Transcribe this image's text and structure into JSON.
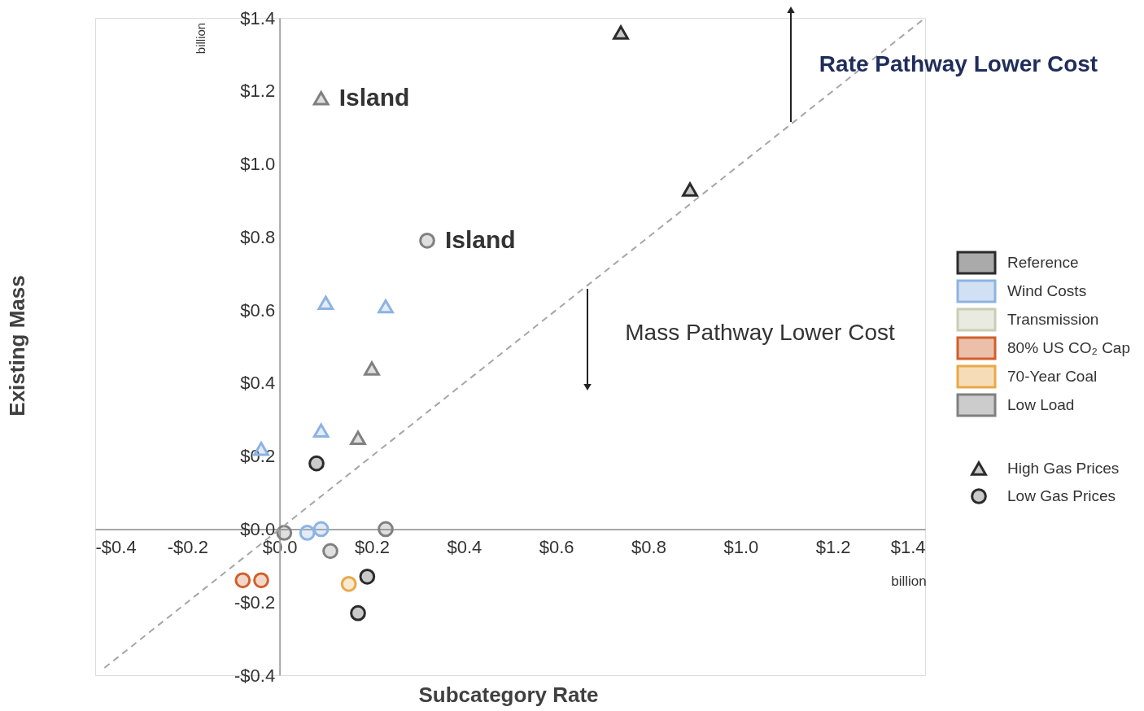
{
  "chart_data": {
    "type": "scatter",
    "xlabel": "Subcategory Rate",
    "ylabel": "Existing Mass",
    "xlim": [
      -0.4,
      1.4
    ],
    "ylim": [
      -0.4,
      1.4
    ],
    "xticks": [
      {
        "value": -0.4,
        "label": "-$0.4"
      },
      {
        "value": -0.2,
        "label": "-$0.2"
      },
      {
        "value": 0.0,
        "label": "$0.0"
      },
      {
        "value": 0.2,
        "label": "$0.2"
      },
      {
        "value": 0.4,
        "label": "$0.4"
      },
      {
        "value": 0.6,
        "label": "$0.6"
      },
      {
        "value": 0.8,
        "label": "$0.8"
      },
      {
        "value": 1.0,
        "label": "$1.0"
      },
      {
        "value": 1.2,
        "label": "$1.2"
      },
      {
        "value": 1.4,
        "label": "$1.4"
      }
    ],
    "yticks": [
      {
        "value": -0.4,
        "label": "-$0.4"
      },
      {
        "value": -0.2,
        "label": "-$0.2"
      },
      {
        "value": 0.0,
        "label": "$0.0"
      },
      {
        "value": 0.2,
        "label": "$0.2"
      },
      {
        "value": 0.4,
        "label": "$0.4"
      },
      {
        "value": 0.6,
        "label": "$0.6"
      },
      {
        "value": 0.8,
        "label": "$0.8"
      },
      {
        "value": 1.0,
        "label": "$1.0"
      },
      {
        "value": 1.2,
        "label": "$1.2"
      },
      {
        "value": 1.4,
        "label": "$1.4"
      }
    ],
    "grid": false,
    "legend": "right",
    "series": [
      {
        "name": "Reference",
        "color": "#2b2b2b"
      },
      {
        "name": "Wind Costs",
        "color": "#8db3e2"
      },
      {
        "name": "Transmission",
        "color": "#c9cdb4"
      },
      {
        "name": "80% US CO₂ Cap",
        "color": "#d0602c"
      },
      {
        "name": "70-Year Coal",
        "color": "#e8a94a"
      },
      {
        "name": "Low Load",
        "color": "#808080"
      },
      {
        "name": "High Gas Prices",
        "marker": "triangle",
        "color": "#2b2b2b",
        "x": [
          0.74,
          0.89,
          0.1,
          0.23,
          0.09,
          -0.04,
          0.09,
          0.2,
          0.17
        ],
        "values": [
          1.36,
          0.93,
          0.62,
          0.61,
          0.27,
          0.22,
          1.18,
          0.44,
          0.25
        ],
        "colors": [
          "#2b2b2b",
          "#2b2b2b",
          "#8db3e2",
          "#8db3e2",
          "#8db3e2",
          "#8db3e2",
          "#808080",
          "#808080",
          "#808080"
        ]
      },
      {
        "name": "Low Gas Prices",
        "marker": "circle",
        "color": "#2b2b2b",
        "x": [
          0.08,
          0.19,
          0.17,
          0.06,
          0.09,
          0.32,
          0.01,
          0.23,
          0.11,
          -0.08,
          -0.04,
          0.15
        ],
        "values": [
          0.18,
          -0.13,
          -0.23,
          -0.01,
          0.0,
          0.79,
          -0.01,
          0.0,
          -0.06,
          -0.14,
          -0.14,
          -0.15
        ],
        "colors": [
          "#2b2b2b",
          "#2b2b2b",
          "#2b2b2b",
          "#8db3e2",
          "#8db3e2",
          "#808080",
          "#808080",
          "#808080",
          "#808080",
          "#d0602c",
          "#d0602c",
          "#e8a94a"
        ]
      },
      {
        "type": "line",
        "line_style": "dashed",
        "color": "#a6a6a6",
        "x": [
          -0.38,
          1.4
        ],
        "values": [
          -0.38,
          1.4
        ]
      }
    ],
    "annotations": [
      "Rate Pathway Lower Cost",
      "Mass Pathway Lower Cost",
      "billion",
      "billion",
      {
        "text": "Island",
        "x": 0.09,
        "y": 1.18
      },
      {
        "text": "Island",
        "x": 0.32,
        "y": 0.79
      }
    ]
  }
}
